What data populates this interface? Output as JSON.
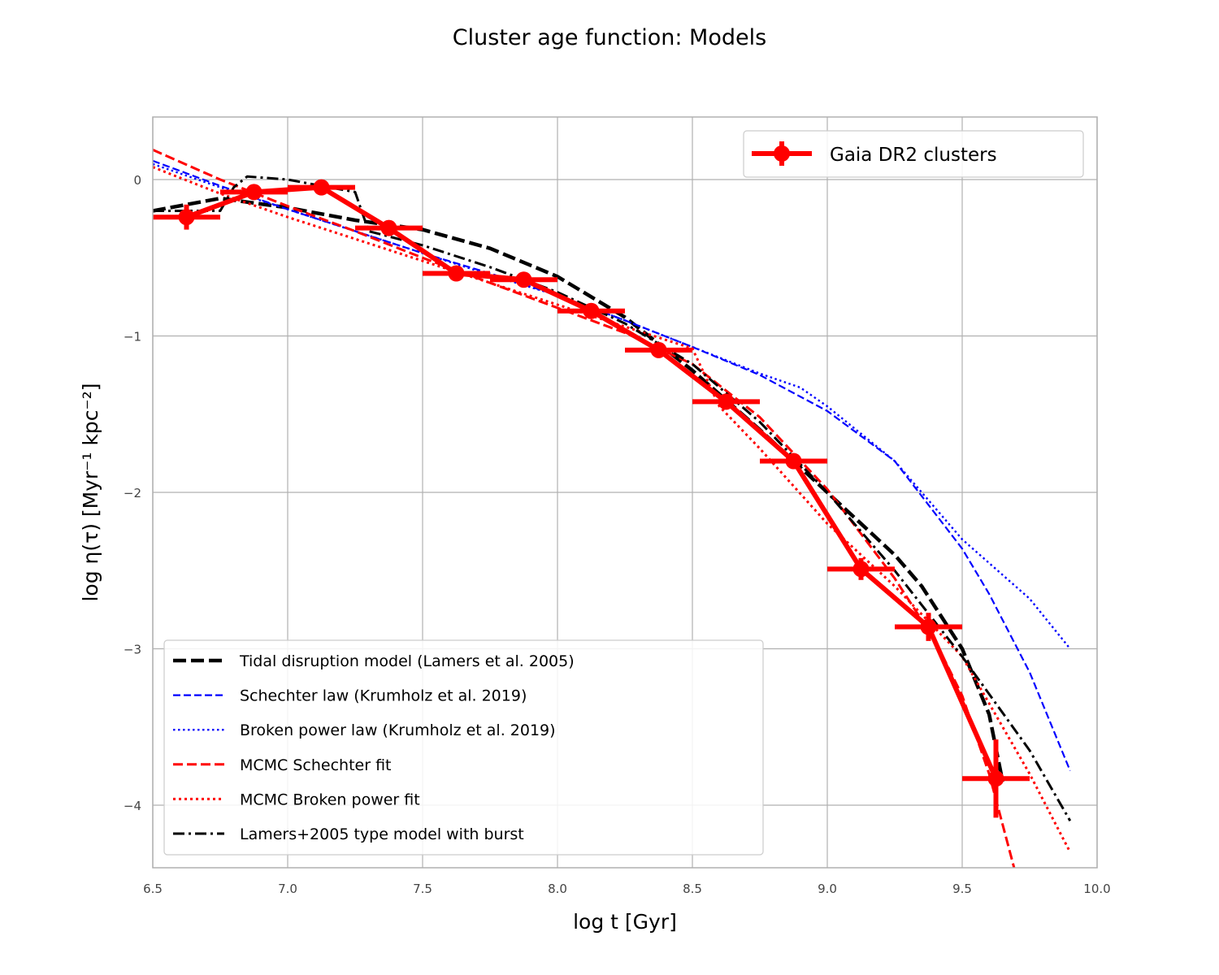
{
  "chart_data": {
    "type": "line",
    "title": "Cluster age function: Models",
    "xlabel": "log t [Gyr]",
    "ylabel": "log η(τ)   [Myr⁻¹ kpc⁻²]",
    "xlim": [
      6.5,
      10.0
    ],
    "ylim": [
      -4.4,
      0.4
    ],
    "xticks": [
      "6.5",
      "7.0",
      "7.5",
      "8.0",
      "8.5",
      "9.0",
      "9.5",
      "10.0"
    ],
    "yticks": [
      "0",
      "−1",
      "−2",
      "−3",
      "−4"
    ],
    "grid": true,
    "data_legend_position": "top-right",
    "models_legend_position": "lower-left",
    "data_series": {
      "name": "Gaia DR2 clusters",
      "color": "#ff0000",
      "x": [
        6.625,
        6.875,
        7.125,
        7.375,
        7.625,
        7.875,
        8.125,
        8.375,
        8.625,
        8.875,
        9.125,
        9.375,
        9.625
      ],
      "y": [
        -0.24,
        -0.08,
        -0.05,
        -0.31,
        -0.6,
        -0.64,
        -0.84,
        -1.09,
        -1.42,
        -1.8,
        -2.49,
        -2.86,
        -3.83
      ],
      "xerr": 0.125,
      "yerr": [
        0.08,
        0.04,
        0.03,
        0.05,
        0.04,
        0.04,
        0.03,
        0.04,
        0.05,
        0.05,
        0.07,
        0.09,
        0.25
      ]
    },
    "model_series": [
      {
        "name": "Tidal disruption model (Lamers et al. 2005)",
        "color": "#000000",
        "style": "dashed-thick",
        "x": [
          6.5,
          6.75,
          7.0,
          7.25,
          7.5,
          7.75,
          8.0,
          8.25,
          8.5,
          8.75,
          9.0,
          9.25,
          9.35,
          9.5,
          9.6,
          9.65
        ],
        "y": [
          -0.2,
          -0.12,
          -0.18,
          -0.26,
          -0.32,
          -0.44,
          -0.62,
          -0.88,
          -1.22,
          -1.6,
          -2.0,
          -2.4,
          -2.6,
          -3.0,
          -3.42,
          -3.85
        ]
      },
      {
        "name": "Schechter law (Krumholz et al. 2019)",
        "color": "#0000ff",
        "style": "dashed-thin",
        "x": [
          6.5,
          6.75,
          7.0,
          7.25,
          7.5,
          7.75,
          8.0,
          8.25,
          8.5,
          8.75,
          9.0,
          9.25,
          9.5,
          9.6,
          9.75,
          9.9
        ],
        "y": [
          0.12,
          -0.04,
          -0.19,
          -0.33,
          -0.47,
          -0.6,
          -0.74,
          -0.9,
          -1.07,
          -1.25,
          -1.48,
          -1.8,
          -2.36,
          -2.65,
          -3.15,
          -3.78
        ]
      },
      {
        "name": "Broken power law (Krumholz et al. 2019)",
        "color": "#0000ff",
        "style": "dotted-thin",
        "x": [
          6.5,
          6.75,
          7.0,
          7.25,
          7.5,
          7.75,
          8.0,
          8.25,
          8.5,
          8.75,
          8.9,
          9.0,
          9.25,
          9.5,
          9.75,
          9.9
        ],
        "y": [
          0.1,
          -0.05,
          -0.19,
          -0.33,
          -0.47,
          -0.61,
          -0.74,
          -0.9,
          -1.07,
          -1.24,
          -1.33,
          -1.45,
          -1.8,
          -2.3,
          -2.68,
          -3.0
        ]
      },
      {
        "name": "MCMC Schechter fit",
        "color": "#ff0000",
        "style": "dashed",
        "x": [
          6.5,
          6.75,
          7.0,
          7.25,
          7.5,
          7.75,
          8.0,
          8.25,
          8.5,
          8.75,
          9.0,
          9.25,
          9.4,
          9.5,
          9.6,
          9.7
        ],
        "y": [
          0.19,
          0.0,
          -0.17,
          -0.33,
          -0.5,
          -0.66,
          -0.82,
          -0.98,
          -1.18,
          -1.52,
          -1.98,
          -2.55,
          -2.95,
          -3.3,
          -3.8,
          -4.45
        ]
      },
      {
        "name": "MCMC Broken power fit",
        "color": "#ff0000",
        "style": "dotted",
        "x": [
          6.5,
          6.75,
          7.0,
          7.25,
          7.5,
          7.75,
          8.0,
          8.25,
          8.5,
          8.6,
          8.75,
          9.0,
          9.25,
          9.5,
          9.75,
          9.9
        ],
        "y": [
          0.08,
          -0.09,
          -0.24,
          -0.38,
          -0.52,
          -0.66,
          -0.8,
          -0.94,
          -1.08,
          -1.45,
          -1.72,
          -2.2,
          -2.6,
          -3.05,
          -3.8,
          -4.3
        ]
      },
      {
        "name": "Lamers+2005 type model with burst",
        "color": "#000000",
        "style": "dashdot",
        "x": [
          6.5,
          6.75,
          6.8,
          6.85,
          7.0,
          7.25,
          7.3,
          7.5,
          7.75,
          8.0,
          8.25,
          8.5,
          8.75,
          9.0,
          9.25,
          9.5,
          9.75,
          9.9
        ],
        "y": [
          -0.2,
          -0.2,
          -0.05,
          0.02,
          0.0,
          -0.08,
          -0.33,
          -0.42,
          -0.56,
          -0.72,
          -0.92,
          -1.18,
          -1.55,
          -2.0,
          -2.5,
          -3.05,
          -3.65,
          -4.1
        ]
      }
    ]
  }
}
